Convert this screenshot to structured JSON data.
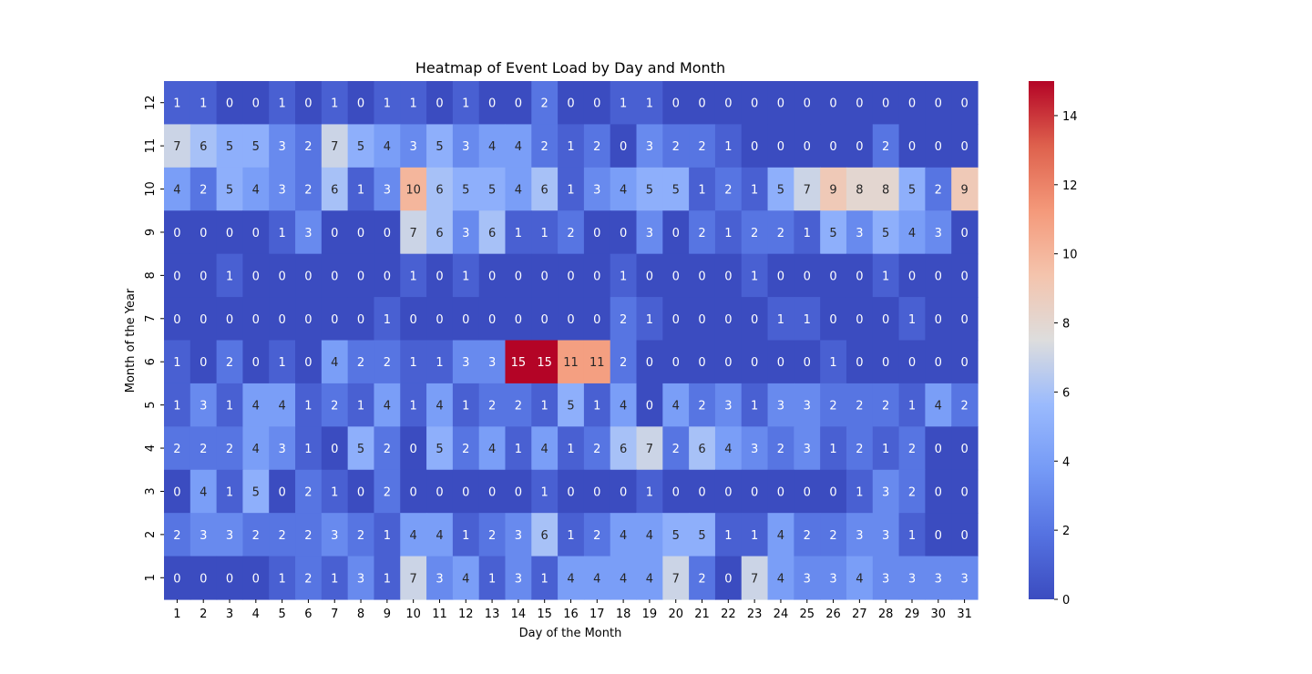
{
  "chart_data": {
    "type": "heatmap",
    "title": "Heatmap of Event Load by Day and Month",
    "xlabel": "Day of the Month",
    "ylabel": "Month of the Year",
    "x_categories": [
      "1",
      "2",
      "3",
      "4",
      "5",
      "6",
      "7",
      "8",
      "9",
      "10",
      "11",
      "12",
      "13",
      "14",
      "15",
      "16",
      "17",
      "18",
      "19",
      "20",
      "21",
      "22",
      "23",
      "24",
      "25",
      "26",
      "27",
      "28",
      "29",
      "30",
      "31"
    ],
    "y_categories": [
      "12",
      "11",
      "10",
      "9",
      "8",
      "7",
      "6",
      "5",
      "4",
      "3",
      "2",
      "1"
    ],
    "values": [
      [
        1,
        1,
        0,
        0,
        1,
        0,
        1,
        0,
        1,
        1,
        0,
        1,
        0,
        0,
        2,
        0,
        0,
        1,
        1,
        0,
        0,
        0,
        0,
        0,
        0,
        0,
        0,
        0,
        0,
        0,
        0
      ],
      [
        7,
        6,
        5,
        5,
        3,
        2,
        7,
        5,
        4,
        3,
        5,
        3,
        4,
        4,
        2,
        1,
        2,
        0,
        3,
        2,
        2,
        1,
        0,
        0,
        0,
        0,
        0,
        2,
        0,
        0,
        0
      ],
      [
        4,
        2,
        5,
        4,
        3,
        2,
        6,
        1,
        3,
        10,
        6,
        5,
        5,
        4,
        6,
        1,
        3,
        4,
        5,
        5,
        1,
        2,
        1,
        5,
        7,
        9,
        8,
        8,
        5,
        2,
        9
      ],
      [
        0,
        0,
        0,
        0,
        1,
        3,
        0,
        0,
        0,
        7,
        6,
        3,
        6,
        1,
        1,
        2,
        0,
        0,
        3,
        0,
        2,
        1,
        2,
        2,
        1,
        5,
        3,
        5,
        4,
        3,
        0
      ],
      [
        0,
        0,
        1,
        0,
        0,
        0,
        0,
        0,
        0,
        1,
        0,
        1,
        0,
        0,
        0,
        0,
        0,
        1,
        0,
        0,
        0,
        0,
        1,
        0,
        0,
        0,
        0,
        1,
        0,
        0,
        0
      ],
      [
        0,
        0,
        0,
        0,
        0,
        0,
        0,
        0,
        1,
        0,
        0,
        0,
        0,
        0,
        0,
        0,
        0,
        2,
        1,
        0,
        0,
        0,
        0,
        1,
        1,
        0,
        0,
        0,
        1,
        0,
        0
      ],
      [
        1,
        0,
        2,
        0,
        1,
        0,
        4,
        2,
        2,
        1,
        1,
        3,
        3,
        15,
        15,
        11,
        11,
        2,
        0,
        0,
        0,
        0,
        0,
        0,
        0,
        1,
        0,
        0,
        0,
        0,
        0
      ],
      [
        1,
        3,
        1,
        4,
        4,
        1,
        2,
        1,
        4,
        1,
        4,
        1,
        2,
        2,
        1,
        5,
        1,
        4,
        0,
        4,
        2,
        3,
        1,
        3,
        3,
        2,
        2,
        2,
        1,
        4,
        2
      ],
      [
        2,
        2,
        2,
        4,
        3,
        1,
        0,
        5,
        2,
        0,
        5,
        2,
        4,
        1,
        4,
        1,
        2,
        6,
        7,
        2,
        6,
        4,
        3,
        2,
        3,
        1,
        2,
        1,
        2,
        0,
        0
      ],
      [
        0,
        4,
        1,
        5,
        0,
        2,
        1,
        0,
        2,
        0,
        0,
        0,
        0,
        0,
        1,
        0,
        0,
        0,
        1,
        0,
        0,
        0,
        0,
        0,
        0,
        0,
        1,
        3,
        2,
        0,
        0
      ],
      [
        2,
        3,
        3,
        2,
        2,
        2,
        3,
        2,
        1,
        4,
        4,
        1,
        2,
        3,
        6,
        1,
        2,
        4,
        4,
        5,
        5,
        1,
        1,
        4,
        2,
        2,
        3,
        3,
        1,
        0,
        0
      ],
      [
        0,
        0,
        0,
        0,
        1,
        2,
        1,
        3,
        1,
        7,
        3,
        4,
        1,
        3,
        1,
        4,
        4,
        4,
        4,
        7,
        2,
        0,
        7,
        4,
        3,
        3,
        4,
        3,
        3,
        3,
        3
      ]
    ],
    "vmin": 0,
    "vmax": 15,
    "colormap": "coolwarm",
    "annotated": true,
    "colorbar_ticks": [
      "0",
      "2",
      "4",
      "6",
      "8",
      "10",
      "12",
      "14"
    ],
    "legend": "colorbar-right",
    "grid": false
  }
}
